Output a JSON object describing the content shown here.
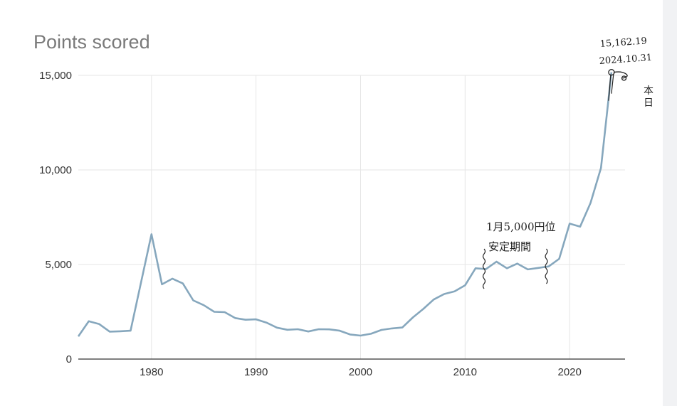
{
  "chart_data": {
    "type": "line",
    "title": "Points scored",
    "xlabel": "",
    "ylabel": "",
    "xlim": [
      1973,
      2025.3
    ],
    "ylim": [
      0,
      15000
    ],
    "grid": true,
    "x_ticks": [
      "1980",
      "1990",
      "2000",
      "2010",
      "2020"
    ],
    "y_ticks": [
      "0",
      "5,000",
      "10,000",
      "15,000"
    ],
    "series": [
      {
        "color": "#86a7bd",
        "x": [
          1973,
          1974,
          1975,
          1976,
          1977,
          1978,
          1980,
          1981,
          1982,
          1983,
          1984,
          1985,
          1986,
          1987,
          1988,
          1989,
          1990,
          1991,
          1992,
          1993,
          1994,
          1995,
          1996,
          1997,
          1998,
          1999,
          2000,
          2001,
          2002,
          2003,
          2004,
          2005,
          2006,
          2007,
          2008,
          2009,
          2010,
          2011,
          2012,
          2013,
          2014,
          2015,
          2016,
          2017,
          2018,
          2019,
          2020,
          2021,
          2022,
          2023,
          2024
        ],
        "y": [
          1200,
          2000,
          1850,
          1450,
          1470,
          1500,
          6600,
          3950,
          4250,
          4000,
          3100,
          2850,
          2500,
          2480,
          2170,
          2080,
          2100,
          1930,
          1660,
          1550,
          1580,
          1460,
          1580,
          1570,
          1500,
          1300,
          1240,
          1340,
          1540,
          1620,
          1670,
          2200,
          2650,
          3150,
          3440,
          3580,
          3900,
          4800,
          4760,
          5150,
          4800,
          5050,
          4740,
          4820,
          4900,
          5300,
          7160,
          7000,
          8250,
          10100,
          15162
        ]
      }
    ],
    "annotations": {
      "peak_value": "15,162.19",
      "peak_date": "2024.10.31",
      "today": "本日",
      "today_value": 14850,
      "today_x": 2025.2,
      "range_line1": "1月5,000円位",
      "range_line2": "安定期間",
      "range_start": 2011,
      "range_end": 2019
    }
  }
}
